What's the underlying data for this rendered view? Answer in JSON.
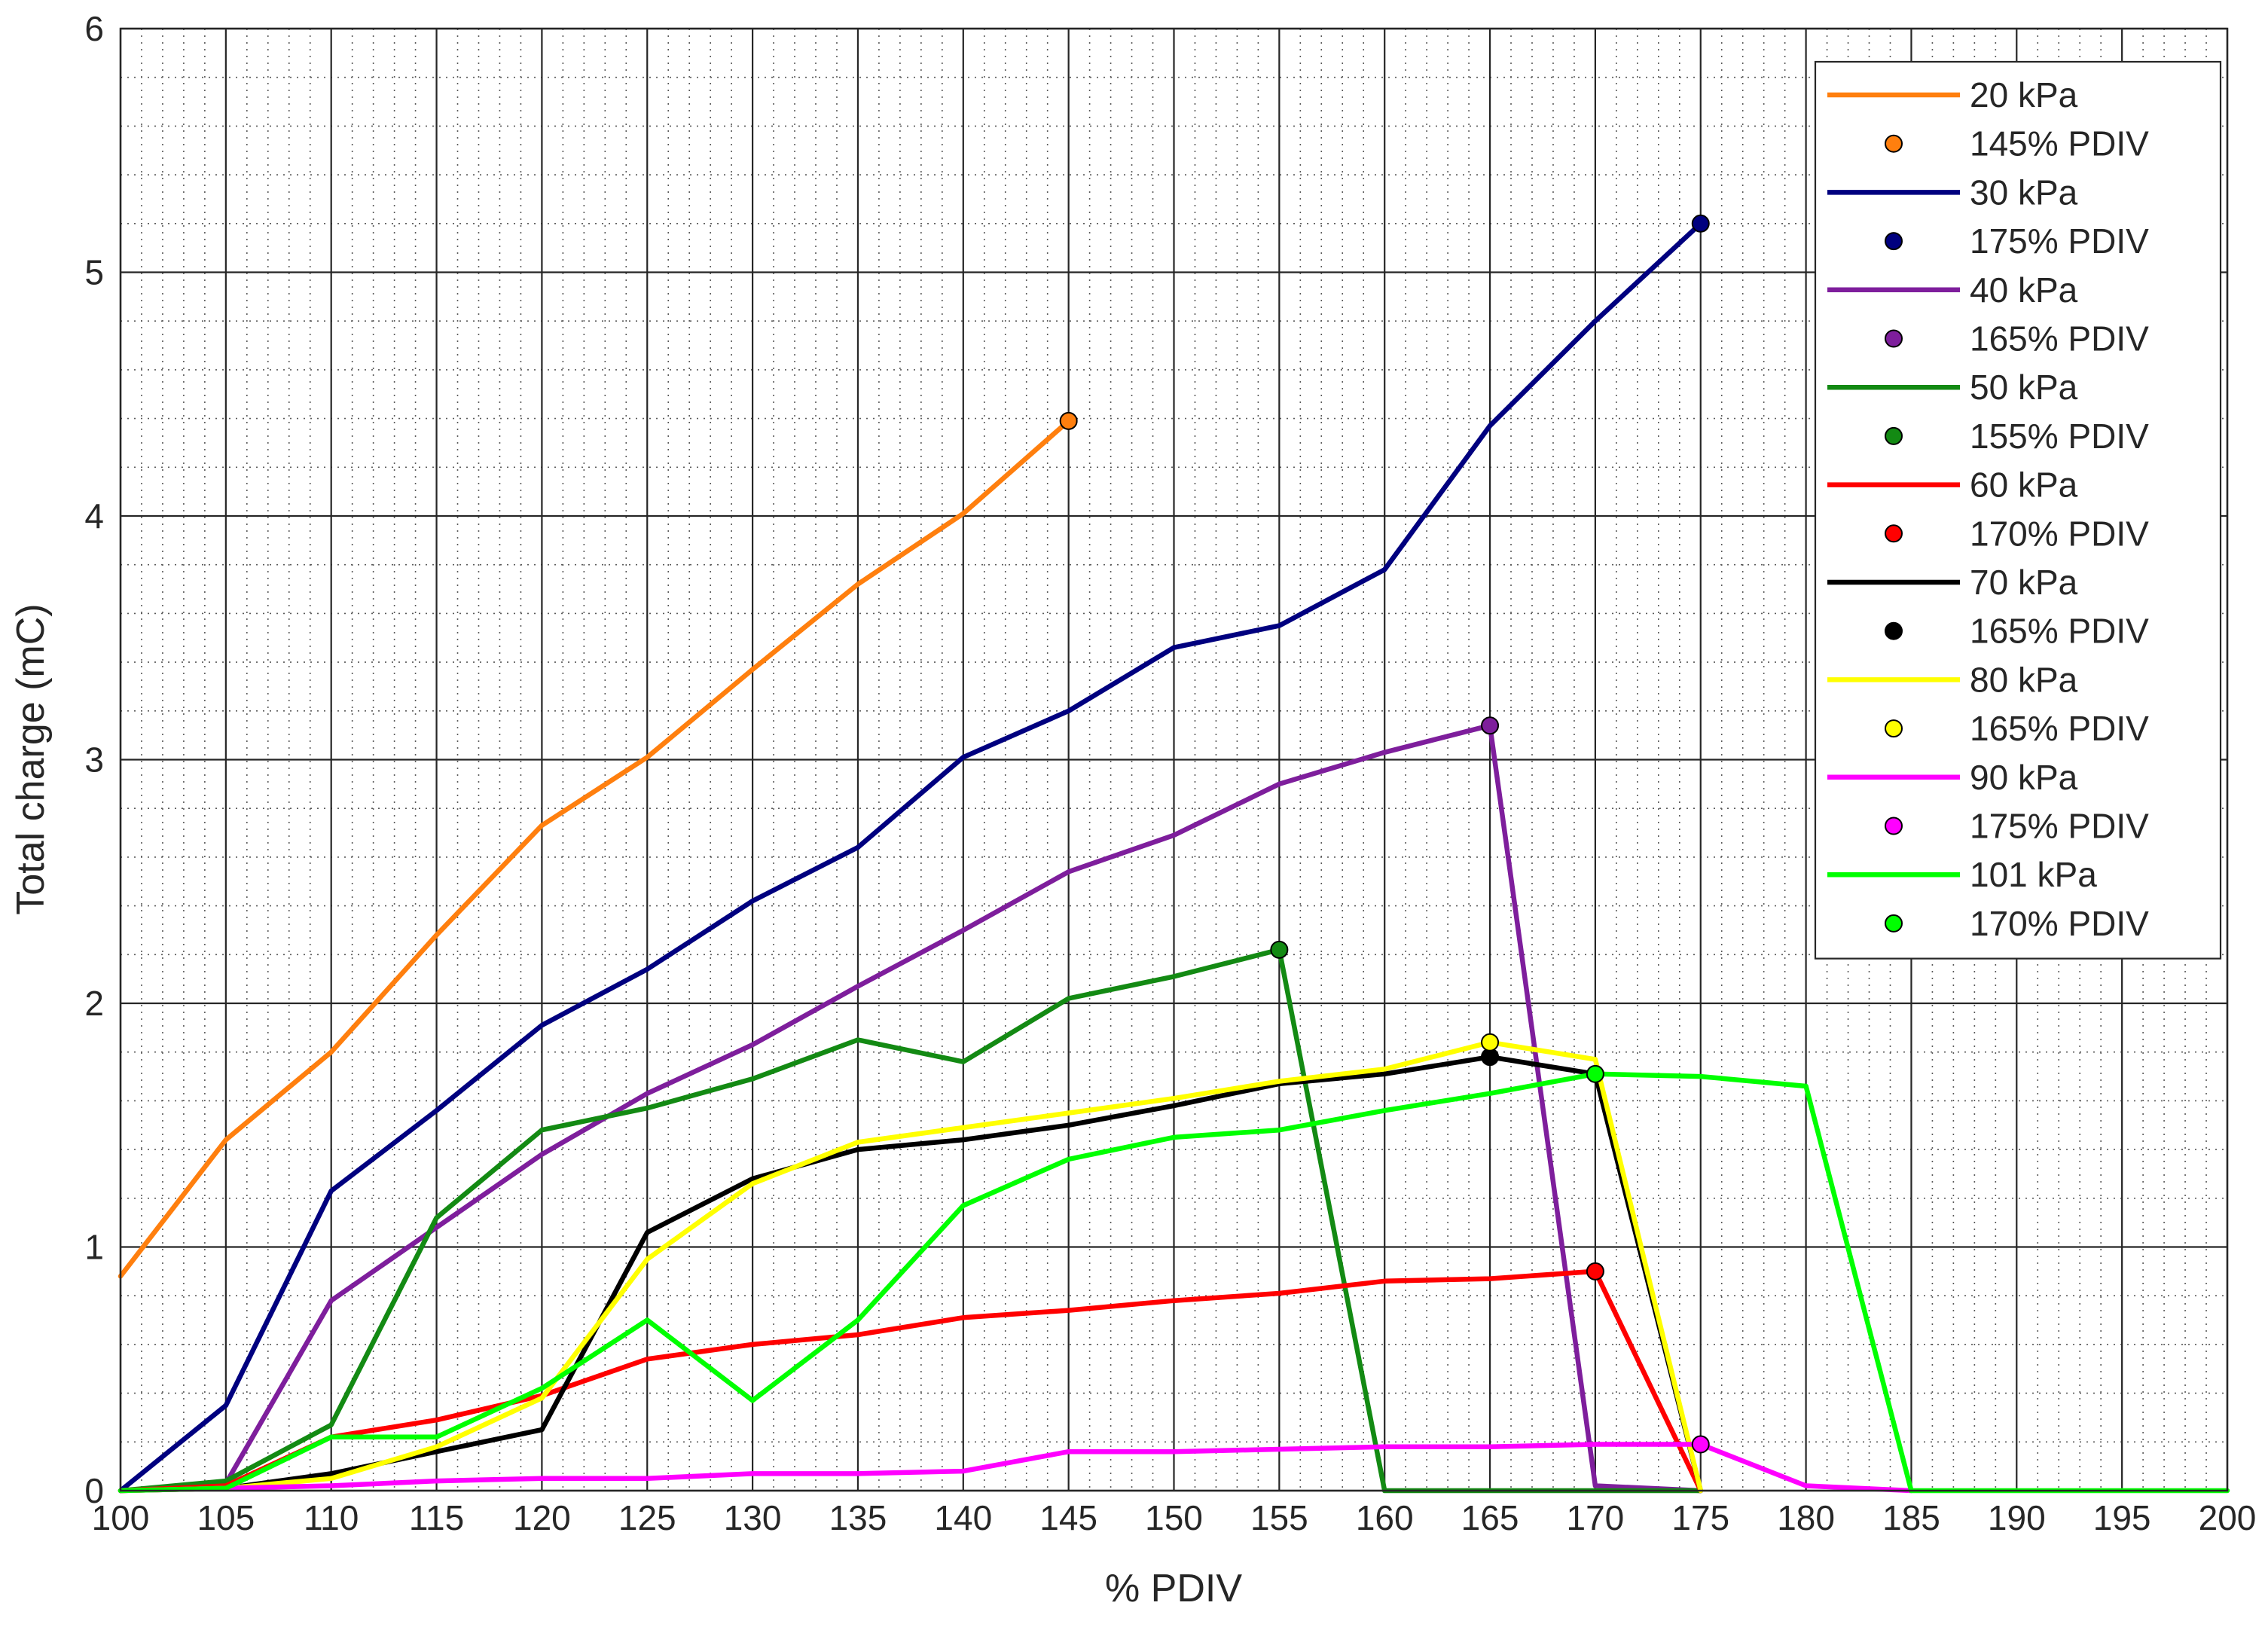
{
  "chart_data": {
    "type": "line",
    "xlabel": "% PDIV",
    "ylabel": "Total charge (mC)",
    "xlim": [
      100,
      200
    ],
    "ylim": [
      0,
      6
    ],
    "x_ticks": [
      "100",
      "105",
      "110",
      "115",
      "120",
      "125",
      "130",
      "135",
      "140",
      "145",
      "150",
      "155",
      "160",
      "165",
      "170",
      "175",
      "180",
      "185",
      "190",
      "195",
      "200"
    ],
    "y_ticks": [
      "0",
      "1",
      "2",
      "3",
      "4",
      "5",
      "6"
    ],
    "grid": "major solid, minor dotted",
    "legend_position": "top-right",
    "series": [
      {
        "name": "20 kPa",
        "color": "#ff7f0e",
        "points": [
          [
            100,
            0.88
          ],
          [
            105,
            1.44
          ],
          [
            110,
            1.8
          ],
          [
            115,
            2.28
          ],
          [
            120,
            2.73
          ],
          [
            125,
            3.01
          ],
          [
            130,
            3.37
          ],
          [
            135,
            3.72
          ],
          [
            140,
            4.01
          ],
          [
            145,
            4.39
          ]
        ],
        "marker": {
          "label": "145% PDIV",
          "x": 145,
          "y": 4.39
        }
      },
      {
        "name": "30 kPa",
        "color": "#00007f",
        "points": [
          [
            100,
            0.0
          ],
          [
            105,
            0.35
          ],
          [
            110,
            1.23
          ],
          [
            115,
            1.56
          ],
          [
            120,
            1.91
          ],
          [
            125,
            2.14
          ],
          [
            130,
            2.42
          ],
          [
            135,
            2.64
          ],
          [
            140,
            3.01
          ],
          [
            145,
            3.2
          ],
          [
            150,
            3.46
          ],
          [
            155,
            3.55
          ],
          [
            160,
            3.78
          ],
          [
            165,
            4.37
          ],
          [
            170,
            4.8
          ],
          [
            175,
            5.2
          ]
        ],
        "marker": {
          "label": "175% PDIV",
          "x": 175,
          "y": 5.2
        }
      },
      {
        "name": "40 kPa",
        "color": "#7e1e9c",
        "points": [
          [
            100,
            0.0
          ],
          [
            105,
            0.03
          ],
          [
            110,
            0.78
          ],
          [
            115,
            1.08
          ],
          [
            120,
            1.38
          ],
          [
            125,
            1.63
          ],
          [
            130,
            1.83
          ],
          [
            135,
            2.07
          ],
          [
            140,
            2.3
          ],
          [
            145,
            2.54
          ],
          [
            150,
            2.69
          ],
          [
            155,
            2.9
          ],
          [
            160,
            3.03
          ],
          [
            165,
            3.14
          ],
          [
            170,
            0.02
          ],
          [
            175,
            0.0
          ]
        ],
        "marker": {
          "label": "165% PDIV",
          "x": 165,
          "y": 3.14
        }
      },
      {
        "name": "50 kPa",
        "color": "#138a13",
        "points": [
          [
            100,
            0.0
          ],
          [
            105,
            0.04
          ],
          [
            110,
            0.27
          ],
          [
            115,
            1.12
          ],
          [
            120,
            1.48
          ],
          [
            125,
            1.57
          ],
          [
            130,
            1.69
          ],
          [
            135,
            1.85
          ],
          [
            140,
            1.76
          ],
          [
            145,
            2.02
          ],
          [
            150,
            2.11
          ],
          [
            155,
            2.22
          ],
          [
            160,
            0.0
          ],
          [
            165,
            0.0
          ],
          [
            170,
            0.0
          ],
          [
            175,
            0.0
          ]
        ],
        "marker": {
          "label": "155% PDIV",
          "x": 155,
          "y": 2.22
        }
      },
      {
        "name": "60 kPa",
        "color": "#ff0000",
        "points": [
          [
            100,
            0.0
          ],
          [
            105,
            0.02
          ],
          [
            110,
            0.22
          ],
          [
            115,
            0.29
          ],
          [
            120,
            0.39
          ],
          [
            125,
            0.54
          ],
          [
            130,
            0.6
          ],
          [
            135,
            0.64
          ],
          [
            140,
            0.71
          ],
          [
            145,
            0.74
          ],
          [
            150,
            0.78
          ],
          [
            155,
            0.81
          ],
          [
            160,
            0.86
          ],
          [
            165,
            0.87
          ],
          [
            170,
            0.9
          ],
          [
            175,
            0.0
          ]
        ],
        "marker": {
          "label": "170% PDIV",
          "x": 170,
          "y": 0.9
        }
      },
      {
        "name": "70 kPa",
        "color": "#000000",
        "points": [
          [
            100,
            0.0
          ],
          [
            105,
            0.01
          ],
          [
            110,
            0.07
          ],
          [
            115,
            0.16
          ],
          [
            120,
            0.25
          ],
          [
            125,
            1.06
          ],
          [
            130,
            1.28
          ],
          [
            135,
            1.4
          ],
          [
            140,
            1.44
          ],
          [
            145,
            1.5
          ],
          [
            150,
            1.58
          ],
          [
            155,
            1.67
          ],
          [
            160,
            1.71
          ],
          [
            165,
            1.78
          ],
          [
            170,
            1.71
          ],
          [
            175,
            0.0
          ]
        ],
        "marker": {
          "label": "165% PDIV",
          "x": 165,
          "y": 1.78
        }
      },
      {
        "name": "80 kPa",
        "color": "#ffff00",
        "points": [
          [
            100,
            0.0
          ],
          [
            105,
            0.01
          ],
          [
            110,
            0.05
          ],
          [
            115,
            0.18
          ],
          [
            120,
            0.38
          ],
          [
            125,
            0.95
          ],
          [
            130,
            1.26
          ],
          [
            135,
            1.43
          ],
          [
            140,
            1.49
          ],
          [
            145,
            1.55
          ],
          [
            150,
            1.61
          ],
          [
            155,
            1.68
          ],
          [
            160,
            1.73
          ],
          [
            165,
            1.84
          ],
          [
            170,
            1.77
          ],
          [
            175,
            0.0
          ]
        ],
        "marker": {
          "label": "165% PDIV",
          "x": 165,
          "y": 1.84
        }
      },
      {
        "name": "90 kPa",
        "color": "#ff00ff",
        "points": [
          [
            100,
            0.0
          ],
          [
            105,
            0.01
          ],
          [
            110,
            0.02
          ],
          [
            115,
            0.04
          ],
          [
            120,
            0.05
          ],
          [
            125,
            0.05
          ],
          [
            130,
            0.07
          ],
          [
            135,
            0.07
          ],
          [
            140,
            0.08
          ],
          [
            145,
            0.16
          ],
          [
            150,
            0.16
          ],
          [
            155,
            0.17
          ],
          [
            160,
            0.18
          ],
          [
            165,
            0.18
          ],
          [
            170,
            0.19
          ],
          [
            175,
            0.19
          ],
          [
            180,
            0.02
          ],
          [
            185,
            0.0
          ]
        ],
        "marker": {
          "label": "175% PDIV",
          "x": 175,
          "y": 0.19
        }
      },
      {
        "name": "101 kPa",
        "color": "#00ff00",
        "points": [
          [
            100,
            0.0
          ],
          [
            105,
            0.01
          ],
          [
            110,
            0.22
          ],
          [
            115,
            0.22
          ],
          [
            120,
            0.42
          ],
          [
            125,
            0.7
          ],
          [
            130,
            0.37
          ],
          [
            135,
            0.7
          ],
          [
            140,
            1.17
          ],
          [
            145,
            1.36
          ],
          [
            150,
            1.45
          ],
          [
            155,
            1.48
          ],
          [
            160,
            1.56
          ],
          [
            165,
            1.63
          ],
          [
            170,
            1.71
          ],
          [
            175,
            1.7
          ],
          [
            180,
            1.66
          ],
          [
            185,
            0.0
          ],
          [
            190,
            0.0
          ],
          [
            195,
            0.0
          ],
          [
            200,
            0.0
          ]
        ],
        "marker": {
          "label": "170% PDIV",
          "x": 170,
          "y": 1.71
        }
      }
    ]
  }
}
